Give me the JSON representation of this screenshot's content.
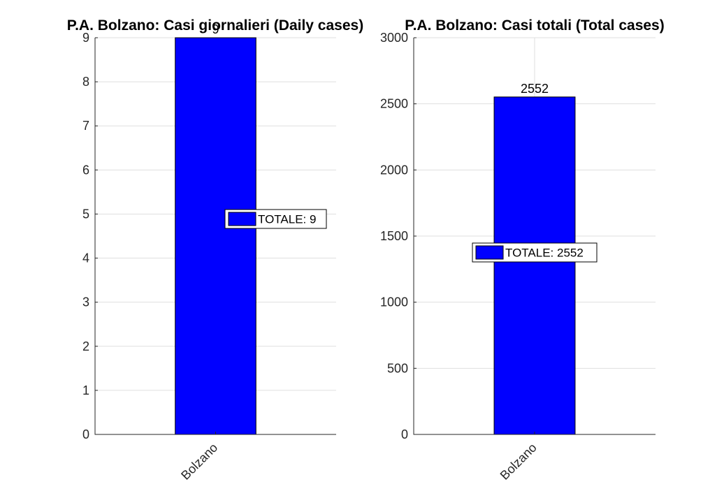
{
  "chart_data": [
    {
      "type": "bar",
      "title": "P.A. Bolzano: Casi giornalieri (Daily cases)",
      "categories": [
        "Bolzano"
      ],
      "series": [
        {
          "name": "TOTALE: 9",
          "values": [
            9
          ]
        }
      ],
      "data_labels": [
        "9"
      ],
      "ylim": [
        0,
        9
      ],
      "yticks": [
        0,
        1,
        2,
        3,
        4,
        5,
        6,
        7,
        8,
        9
      ],
      "grid": true,
      "legend_position": "center-right",
      "bar_color": "#0000ff"
    },
    {
      "type": "bar",
      "title": "P.A. Bolzano: Casi totali (Total cases)",
      "categories": [
        "Bolzano"
      ],
      "series": [
        {
          "name": "TOTALE: 2552",
          "values": [
            2552
          ]
        }
      ],
      "data_labels": [
        "2552"
      ],
      "ylim": [
        0,
        3000
      ],
      "yticks": [
        0,
        500,
        1000,
        1500,
        2000,
        2500,
        3000
      ],
      "grid": true,
      "legend_position": "center",
      "bar_color": "#0000ff"
    }
  ]
}
